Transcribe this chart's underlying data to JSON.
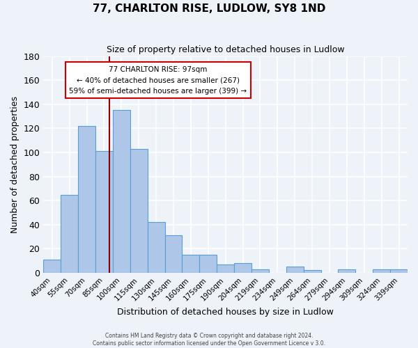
{
  "title": "77, CHARLTON RISE, LUDLOW, SY8 1ND",
  "subtitle": "Size of property relative to detached houses in Ludlow",
  "xlabel": "Distribution of detached houses by size in Ludlow",
  "ylabel": "Number of detached properties",
  "bar_labels": [
    "40sqm",
    "55sqm",
    "70sqm",
    "85sqm",
    "100sqm",
    "115sqm",
    "130sqm",
    "145sqm",
    "160sqm",
    "175sqm",
    "190sqm",
    "204sqm",
    "219sqm",
    "234sqm",
    "249sqm",
    "264sqm",
    "279sqm",
    "294sqm",
    "309sqm",
    "324sqm",
    "339sqm"
  ],
  "bar_values": [
    11,
    65,
    122,
    101,
    135,
    103,
    42,
    31,
    15,
    15,
    7,
    8,
    3,
    0,
    5,
    2,
    0,
    3,
    0,
    3,
    3
  ],
  "bar_color": "#aec6e8",
  "bar_edge_color": "#5a9fd4",
  "ylim": [
    0,
    180
  ],
  "yticks": [
    0,
    20,
    40,
    60,
    80,
    100,
    120,
    140,
    160,
    180
  ],
  "annotation_line1": "77 CHARLTON RISE: 97sqm",
  "annotation_line2": "← 40% of detached houses are smaller (267)",
  "annotation_line3": "59% of semi-detached houses are larger (399) →",
  "vline_color": "#8b0000",
  "annotation_box_edge": "#cc0000",
  "footer1": "Contains HM Land Registry data © Crown copyright and database right 2024.",
  "footer2": "Contains public sector information licensed under the Open Government Licence v 3.0.",
  "bg_color": "#eef2f9",
  "plot_bg_color": "#eef2f9",
  "grid_color": "#ffffff"
}
